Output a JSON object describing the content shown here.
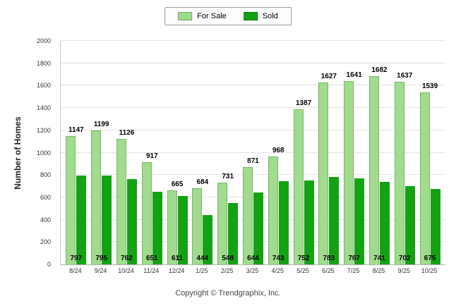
{
  "legend": {
    "for_sale_label": "For Sale",
    "sold_label": "Sold"
  },
  "ylabel": "Number of Homes",
  "footer": "Copyright © Trendgraphix, Inc.",
  "colors": {
    "for_sale": "#A1DB8D",
    "sold": "#12A212",
    "grid": "#e2e2e2"
  },
  "chart_data": {
    "type": "bar",
    "title": "",
    "xlabel": "",
    "ylabel": "Number of Homes",
    "ylim": [
      0,
      2000
    ],
    "ytick_step": 200,
    "grid": true,
    "legend_position": "top-center",
    "categories": [
      "8/24",
      "9/24",
      "10/24",
      "11/24",
      "12/24",
      "1/25",
      "2/25",
      "3/25",
      "4/25",
      "5/25",
      "6/25",
      "7/25",
      "8/25",
      "9/25",
      "10/25"
    ],
    "series": [
      {
        "name": "For Sale",
        "color": "#A1DB8D",
        "values": [
          1147,
          1199,
          1126,
          917,
          665,
          684,
          731,
          871,
          968,
          1387,
          1627,
          1641,
          1682,
          1637,
          1539
        ]
      },
      {
        "name": "Sold",
        "color": "#12A212",
        "values": [
          797,
          795,
          762,
          651,
          611,
          444,
          548,
          644,
          743,
          752,
          783,
          767,
          741,
          702,
          675
        ]
      }
    ]
  }
}
